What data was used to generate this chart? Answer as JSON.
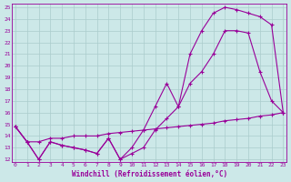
{
  "xlabel": "Windchill (Refroidissement éolien,°C)",
  "bg_color": "#cce8e8",
  "line_color": "#990099",
  "grid_color": "#aacccc",
  "xmin": 0,
  "xmax": 23,
  "ymin": 12,
  "ymax": 25,
  "line1_x": [
    0,
    1,
    2,
    3,
    4,
    5,
    6,
    7,
    8,
    9,
    10,
    11,
    12,
    13,
    14,
    15,
    16,
    17,
    18,
    19,
    20,
    21,
    22,
    23
  ],
  "line1_y": [
    14.8,
    13.5,
    12.0,
    13.5,
    13.2,
    13.0,
    12.8,
    12.5,
    13.8,
    12.0,
    12.5,
    13.0,
    14.5,
    15.5,
    16.5,
    18.5,
    19.5,
    21.0,
    23.0,
    23.0,
    22.8,
    19.5,
    17.0,
    16.0
  ],
  "line2_x": [
    0,
    1,
    2,
    3,
    4,
    5,
    6,
    7,
    8,
    9,
    10,
    11,
    12,
    13,
    14,
    15,
    16,
    17,
    18,
    19,
    20,
    21,
    22,
    23
  ],
  "line2_y": [
    14.8,
    13.5,
    12.0,
    13.5,
    13.2,
    13.0,
    12.8,
    12.5,
    13.8,
    12.0,
    13.0,
    14.5,
    16.5,
    18.5,
    16.5,
    21.0,
    23.0,
    24.5,
    25.0,
    24.8,
    24.5,
    24.2,
    23.5,
    16.0
  ],
  "line3_x": [
    0,
    1,
    2,
    3,
    4,
    5,
    6,
    7,
    8,
    9,
    10,
    11,
    12,
    13,
    14,
    15,
    16,
    17,
    18,
    19,
    20,
    21,
    22,
    23
  ],
  "line3_y": [
    14.8,
    13.5,
    13.5,
    13.8,
    13.8,
    14.0,
    14.0,
    14.0,
    14.2,
    14.3,
    14.4,
    14.5,
    14.6,
    14.7,
    14.8,
    14.9,
    15.0,
    15.1,
    15.3,
    15.4,
    15.5,
    15.7,
    15.8,
    16.0
  ],
  "marker": "+",
  "markersize": 3,
  "linewidth": 0.8
}
